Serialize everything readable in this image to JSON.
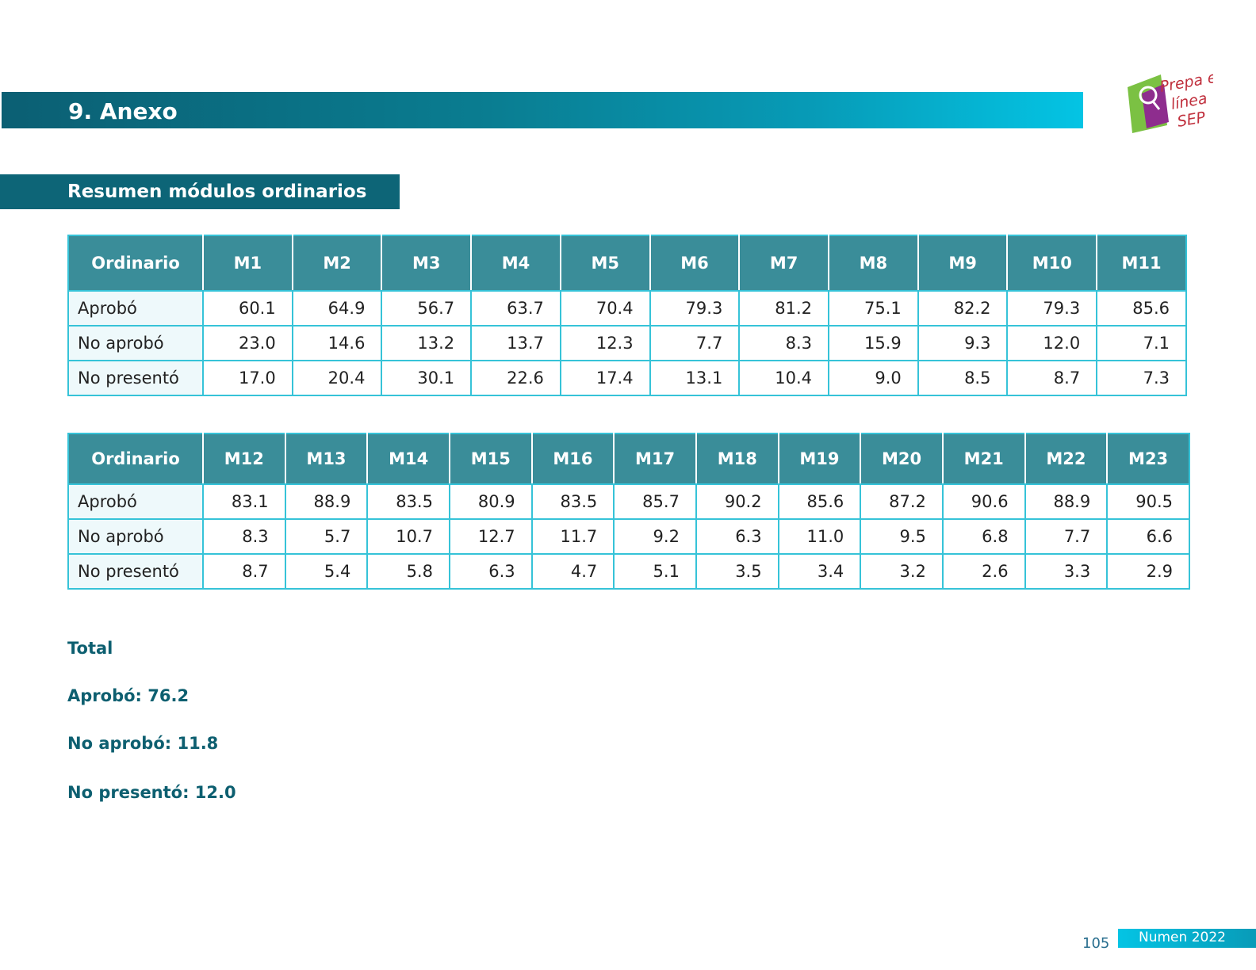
{
  "header": {
    "title": "9. Anexo"
  },
  "logo": {
    "icon": "prepa-en-linea-sep-logo",
    "text_lines": [
      "Prepa en",
      "línea",
      "SEP"
    ]
  },
  "section": {
    "title": "Resumen módulos ordinarios"
  },
  "table1": {
    "headers": [
      "Ordinario",
      "M1",
      "M2",
      "M3",
      "M4",
      "M5",
      "M6",
      "M7",
      "M8",
      "M9",
      "M10",
      "M11"
    ],
    "rows": [
      [
        "Aprobó",
        "60.1",
        "64.9",
        "56.7",
        "63.7",
        "70.4",
        "79.3",
        "81.2",
        "75.1",
        "82.2",
        "79.3",
        "85.6"
      ],
      [
        "No aprobó",
        "23.0",
        "14.6",
        "13.2",
        "13.7",
        "12.3",
        "7.7",
        "8.3",
        "15.9",
        "9.3",
        "12.0",
        "7.1"
      ],
      [
        "No presentó",
        "17.0",
        "20.4",
        "30.1",
        "22.6",
        "17.4",
        "13.1",
        "10.4",
        "9.0",
        "8.5",
        "8.7",
        "7.3"
      ]
    ]
  },
  "table2": {
    "headers": [
      "Ordinario",
      "M12",
      "M13",
      "M14",
      "M15",
      "M16",
      "M17",
      "M18",
      "M19",
      "M20",
      "M21",
      "M22",
      "M23"
    ],
    "rows": [
      [
        "Aprobó",
        "83.1",
        "88.9",
        "83.5",
        "80.9",
        "83.5",
        "85.7",
        "90.2",
        "85.6",
        "87.2",
        "90.6",
        "88.9",
        "90.5"
      ],
      [
        "No aprobó",
        "8.3",
        "5.7",
        "10.7",
        "12.7",
        "11.7",
        "9.2",
        "6.3",
        "11.0",
        "9.5",
        "6.8",
        "7.7",
        "6.6"
      ],
      [
        "No presentó",
        "8.7",
        "5.4",
        "5.8",
        "6.3",
        "4.7",
        "5.1",
        "3.5",
        "3.4",
        "3.2",
        "2.6",
        "3.3",
        "2.9"
      ]
    ]
  },
  "summary": {
    "total": "Total",
    "aprobo": "Aprobó: 76.2",
    "no_aprobo": "No aprobó: 11.8",
    "no_presento": "No presentó: 12.0"
  },
  "footer": {
    "page": "105",
    "tag": "Numen 2022"
  },
  "colors": {
    "teal_dark": "#0d6577",
    "teal_header": "#3a8d99",
    "cyan": "#04c4e4",
    "border": "#36c3d8"
  }
}
